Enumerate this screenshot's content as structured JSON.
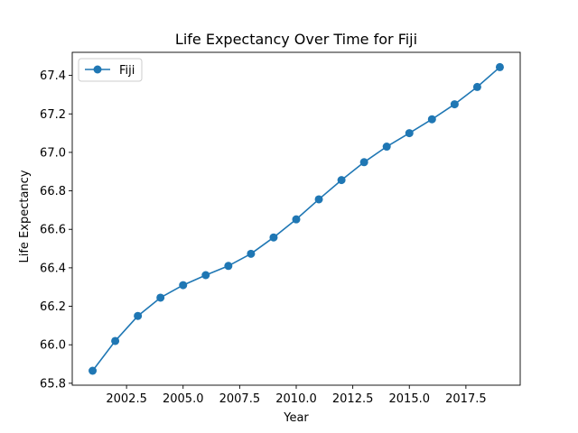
{
  "chart_data": {
    "type": "line",
    "title": "Life Expectancy Over Time for Fiji",
    "xlabel": "Year",
    "ylabel": "Life Expectancy",
    "xlim": [
      2000.1,
      2019.9
    ],
    "ylim": [
      65.79,
      67.52
    ],
    "xticks": [
      2002.5,
      2005.0,
      2007.5,
      2010.0,
      2012.5,
      2015.0,
      2017.5
    ],
    "xtick_labels": [
      "2002.5",
      "2005.0",
      "2007.5",
      "2010.0",
      "2012.5",
      "2015.0",
      "2017.5"
    ],
    "yticks": [
      65.8,
      66.0,
      66.2,
      66.4,
      66.6,
      66.8,
      67.0,
      67.2,
      67.4
    ],
    "ytick_labels": [
      "65.8",
      "66.0",
      "66.2",
      "66.4",
      "66.6",
      "66.8",
      "67.0",
      "67.2",
      "67.4"
    ],
    "grid": false,
    "legend_position": "top-left",
    "series": [
      {
        "name": "Fiji",
        "color": "#1f77b4",
        "marker": "circle",
        "x": [
          2001,
          2002,
          2003,
          2004,
          2005,
          2006,
          2007,
          2008,
          2009,
          2010,
          2011,
          2012,
          2013,
          2014,
          2015,
          2016,
          2017,
          2018,
          2019
        ],
        "y": [
          65.865,
          66.02,
          66.15,
          66.245,
          66.31,
          66.362,
          66.41,
          66.473,
          66.558,
          66.652,
          66.756,
          66.856,
          66.949,
          67.03,
          67.1,
          67.172,
          67.25,
          67.34,
          67.443
        ]
      }
    ]
  }
}
